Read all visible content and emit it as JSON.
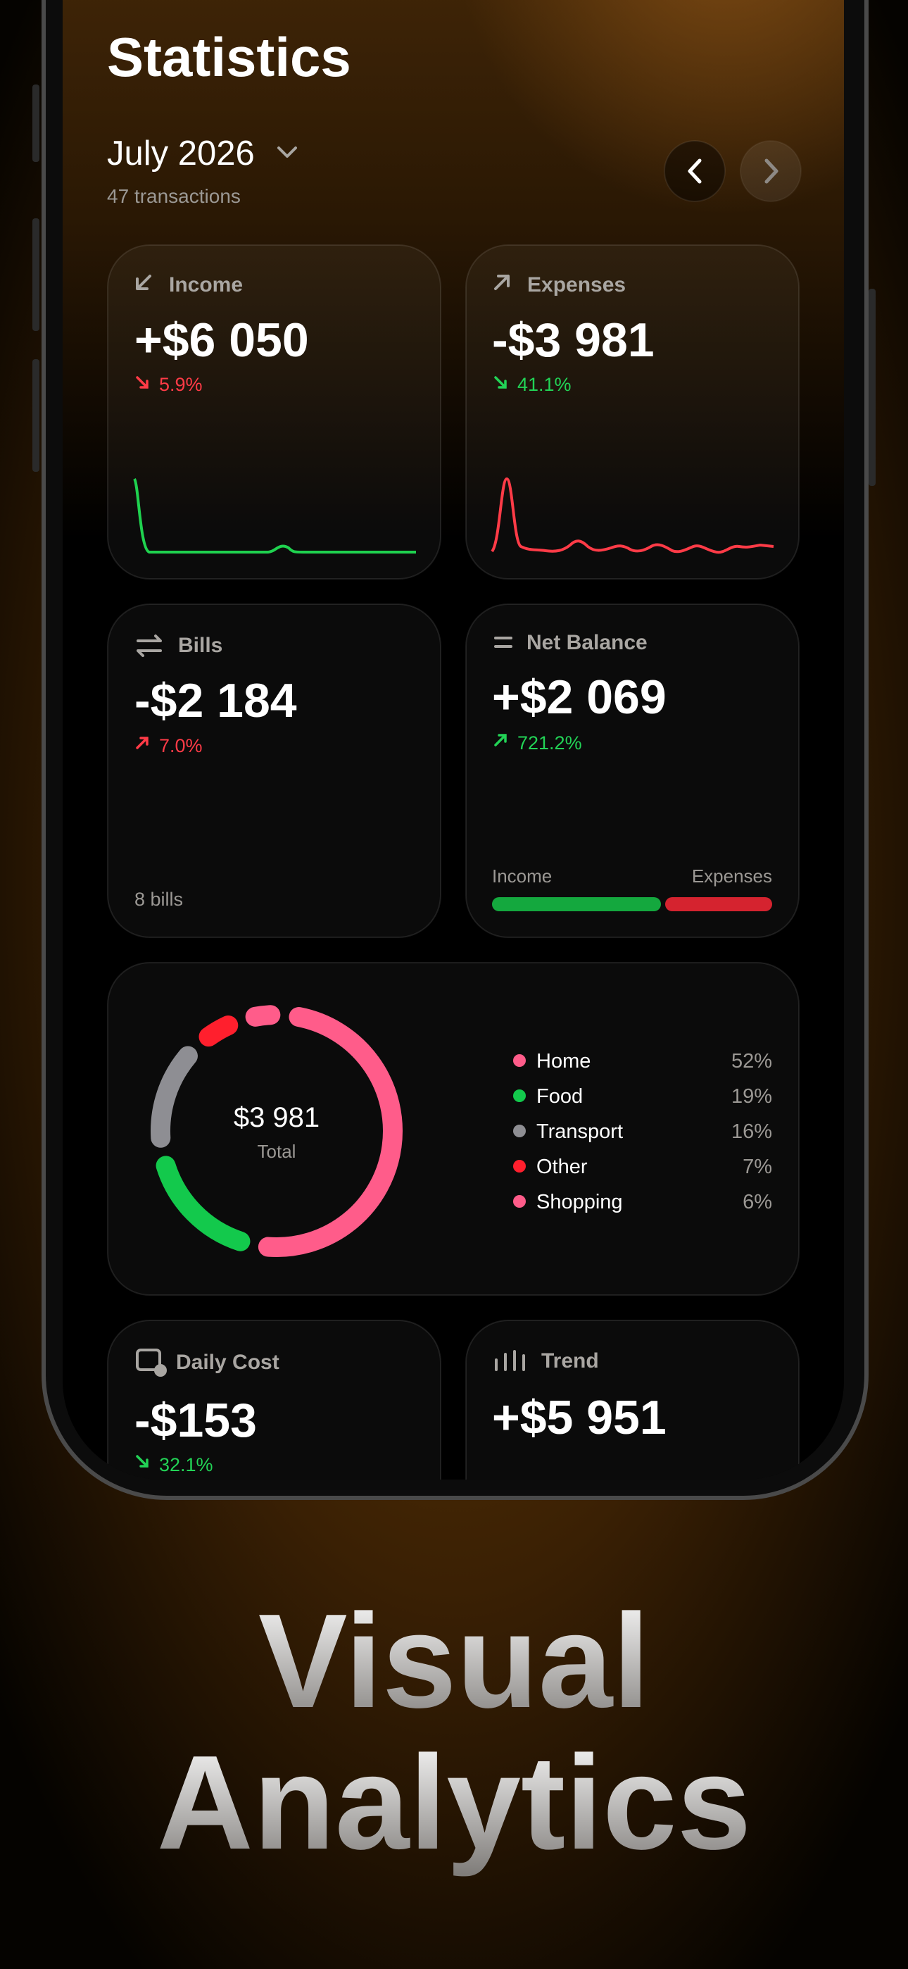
{
  "header": {
    "title": "Statistics",
    "month": "July 2026",
    "transactions": "47 transactions"
  },
  "income": {
    "label": "Income",
    "value": "+$6 050",
    "change": "5.9%"
  },
  "expenses": {
    "label": "Expenses",
    "value": "-$3 981",
    "change": "41.1%"
  },
  "bills": {
    "label": "Bills",
    "value": "-$2 184",
    "change": "7.0%",
    "footer": "8 bills"
  },
  "net_balance": {
    "label": "Net Balance",
    "value": "+$2 069",
    "change": "721.2%",
    "bar_left": "Income",
    "bar_right": "Expenses"
  },
  "breakdown": {
    "total": "$3 981",
    "total_label": "Total",
    "items": [
      {
        "name": "Home",
        "value": 52,
        "label": "52%",
        "color": "#ff5c8a"
      },
      {
        "name": "Food",
        "value": 19,
        "label": "19%",
        "color": "#13c94c"
      },
      {
        "name": "Transport",
        "value": 16,
        "label": "16%",
        "color": "#8e8e93"
      },
      {
        "name": "Other",
        "value": 7,
        "label": "7%",
        "color": "#ff1f2d"
      },
      {
        "name": "Shopping",
        "value": 6,
        "label": "6%",
        "color": "#ff5c8a"
      }
    ]
  },
  "daily_cost": {
    "label": "Daily Cost",
    "value": "-$153",
    "change": "32.1%"
  },
  "trend": {
    "label": "Trend",
    "value": "+$5 951"
  },
  "tagline": [
    "Visual",
    "Analytics"
  ]
}
